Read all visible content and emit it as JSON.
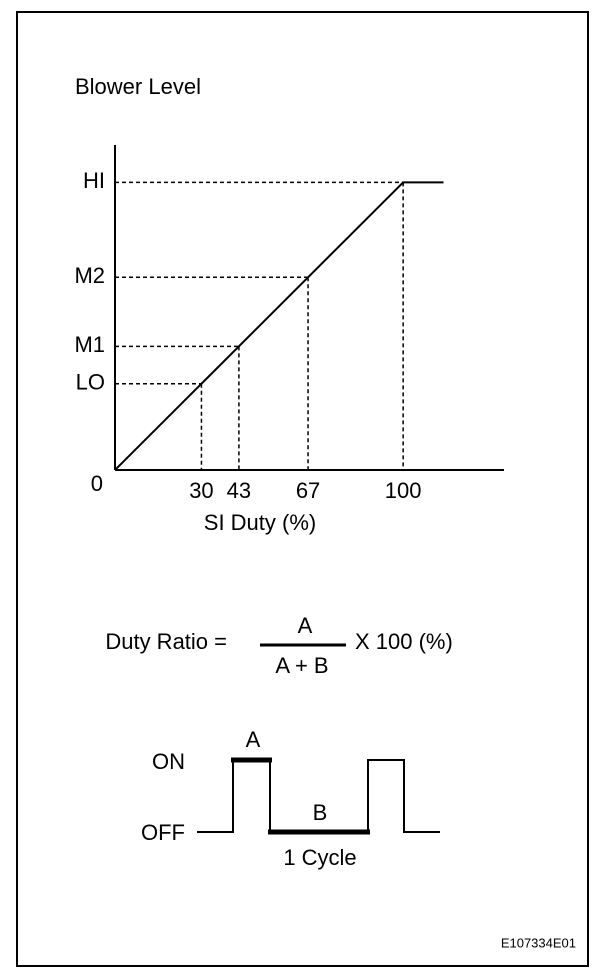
{
  "chart_data": {
    "type": "line",
    "title": "Blower Level",
    "x_label": "SI Duty (%)",
    "x": [
      0,
      30,
      43,
      67,
      100,
      114
    ],
    "values": [
      0,
      30,
      43,
      67,
      100,
      100
    ],
    "color": "#000000",
    "xlim": [
      0,
      135
    ],
    "ylim": [
      0,
      113
    ],
    "xticks": [
      30,
      43,
      67,
      100
    ],
    "yticks": [
      0,
      {
        "value": 30,
        "label": "LO"
      },
      {
        "value": 43,
        "label": "M1"
      },
      {
        "value": 67,
        "label": "M2"
      },
      {
        "value": 100,
        "label": "HI"
      }
    ],
    "guides": true
  },
  "formula": {
    "lhs": "Duty Ratio =",
    "numerator": "A",
    "denominator": "A + B",
    "rhs": "X  100 (%)"
  },
  "waveform": {
    "on": "ON",
    "off": "OFF",
    "a": "A",
    "b": "B",
    "cycle": "1 Cycle"
  },
  "figure_id": "E107334E01"
}
